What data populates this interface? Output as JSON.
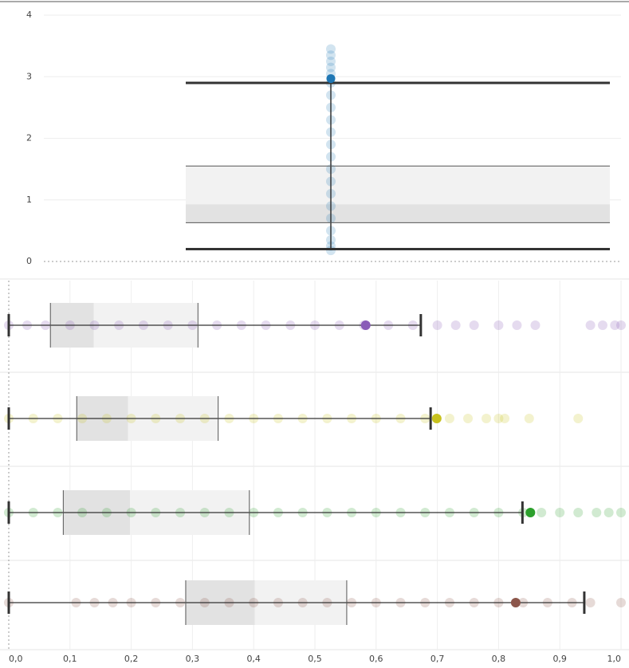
{
  "chart_data": [
    {
      "type": "box",
      "orientation": "vertical",
      "ylim": [
        0,
        4
      ],
      "yticks": [
        0,
        1,
        2,
        3,
        4
      ],
      "grid": true,
      "boxes": [
        {
          "color": "#1f77b4",
          "whisker_low": 0.2,
          "q1": 0.63,
          "median": 0.93,
          "q3": 1.55,
          "whisker_high": 2.9,
          "highlight": 2.97,
          "points": [
            0.18,
            0.25,
            0.35,
            0.5,
            0.7,
            0.9,
            1.1,
            1.3,
            1.5,
            1.7,
            1.9,
            2.1,
            2.3,
            2.5,
            2.7,
            2.9,
            3.05,
            3.15,
            3.25,
            3.35,
            3.45
          ]
        }
      ]
    },
    {
      "type": "box",
      "orientation": "horizontal",
      "xlim": [
        0,
        1
      ],
      "xticks": [
        {
          "value": 0,
          "label": "0,0"
        },
        {
          "value": 0.1,
          "label": "0,1"
        },
        {
          "value": 0.2,
          "label": "0,2"
        },
        {
          "value": 0.3,
          "label": "0,3"
        },
        {
          "value": 0.4,
          "label": "0,4"
        },
        {
          "value": 0.5,
          "label": "0,5"
        },
        {
          "value": 0.6,
          "label": "0,6"
        },
        {
          "value": 0.7,
          "label": "0,7"
        },
        {
          "value": 0.8,
          "label": "0,8"
        },
        {
          "value": 0.9,
          "label": "0,9"
        },
        {
          "value": 1,
          "label": "1,0"
        }
      ],
      "grid": true,
      "boxes": [
        {
          "color": "#8a5cb8",
          "whisker_low": 0,
          "q1": 0.068,
          "median": 0.139,
          "q3": 0.309,
          "whisker_high": 0.673,
          "highlight": 0.583,
          "points": [
            0,
            0.03,
            0.06,
            0.1,
            0.14,
            0.18,
            0.22,
            0.26,
            0.3,
            0.34,
            0.38,
            0.42,
            0.46,
            0.5,
            0.54,
            0.58,
            0.62,
            0.66,
            0.7,
            0.73,
            0.76,
            0.8,
            0.83,
            0.86,
            0.95,
            0.97,
            0.99,
            1
          ]
        },
        {
          "color": "#c8c21e",
          "whisker_low": 0,
          "q1": 0.111,
          "median": 0.195,
          "q3": 0.342,
          "whisker_high": 0.689,
          "highlight": 0.699,
          "points": [
            0,
            0.04,
            0.08,
            0.12,
            0.16,
            0.2,
            0.24,
            0.28,
            0.32,
            0.36,
            0.4,
            0.44,
            0.48,
            0.52,
            0.56,
            0.6,
            0.64,
            0.68,
            0.72,
            0.75,
            0.78,
            0.8,
            0.81,
            0.85,
            0.93
          ]
        },
        {
          "color": "#2ca02c",
          "whisker_low": 0,
          "q1": 0.089,
          "median": 0.198,
          "q3": 0.393,
          "whisker_high": 0.839,
          "highlight": 0.852,
          "points": [
            0,
            0.04,
            0.08,
            0.12,
            0.16,
            0.2,
            0.24,
            0.28,
            0.32,
            0.36,
            0.4,
            0.44,
            0.48,
            0.52,
            0.56,
            0.6,
            0.64,
            0.68,
            0.72,
            0.76,
            0.8,
            0.84,
            0.87,
            0.9,
            0.93,
            0.96,
            0.98,
            1
          ]
        },
        {
          "color": "#8c564b",
          "whisker_low": 0,
          "q1": 0.289,
          "median": 0.402,
          "q3": 0.552,
          "whisker_high": 0.94,
          "highlight": 0.828,
          "points": [
            0,
            0.11,
            0.14,
            0.17,
            0.2,
            0.24,
            0.28,
            0.32,
            0.36,
            0.4,
            0.44,
            0.48,
            0.52,
            0.56,
            0.6,
            0.64,
            0.68,
            0.72,
            0.76,
            0.8,
            0.84,
            0.88,
            0.92,
            0.95,
            1
          ]
        }
      ]
    }
  ]
}
